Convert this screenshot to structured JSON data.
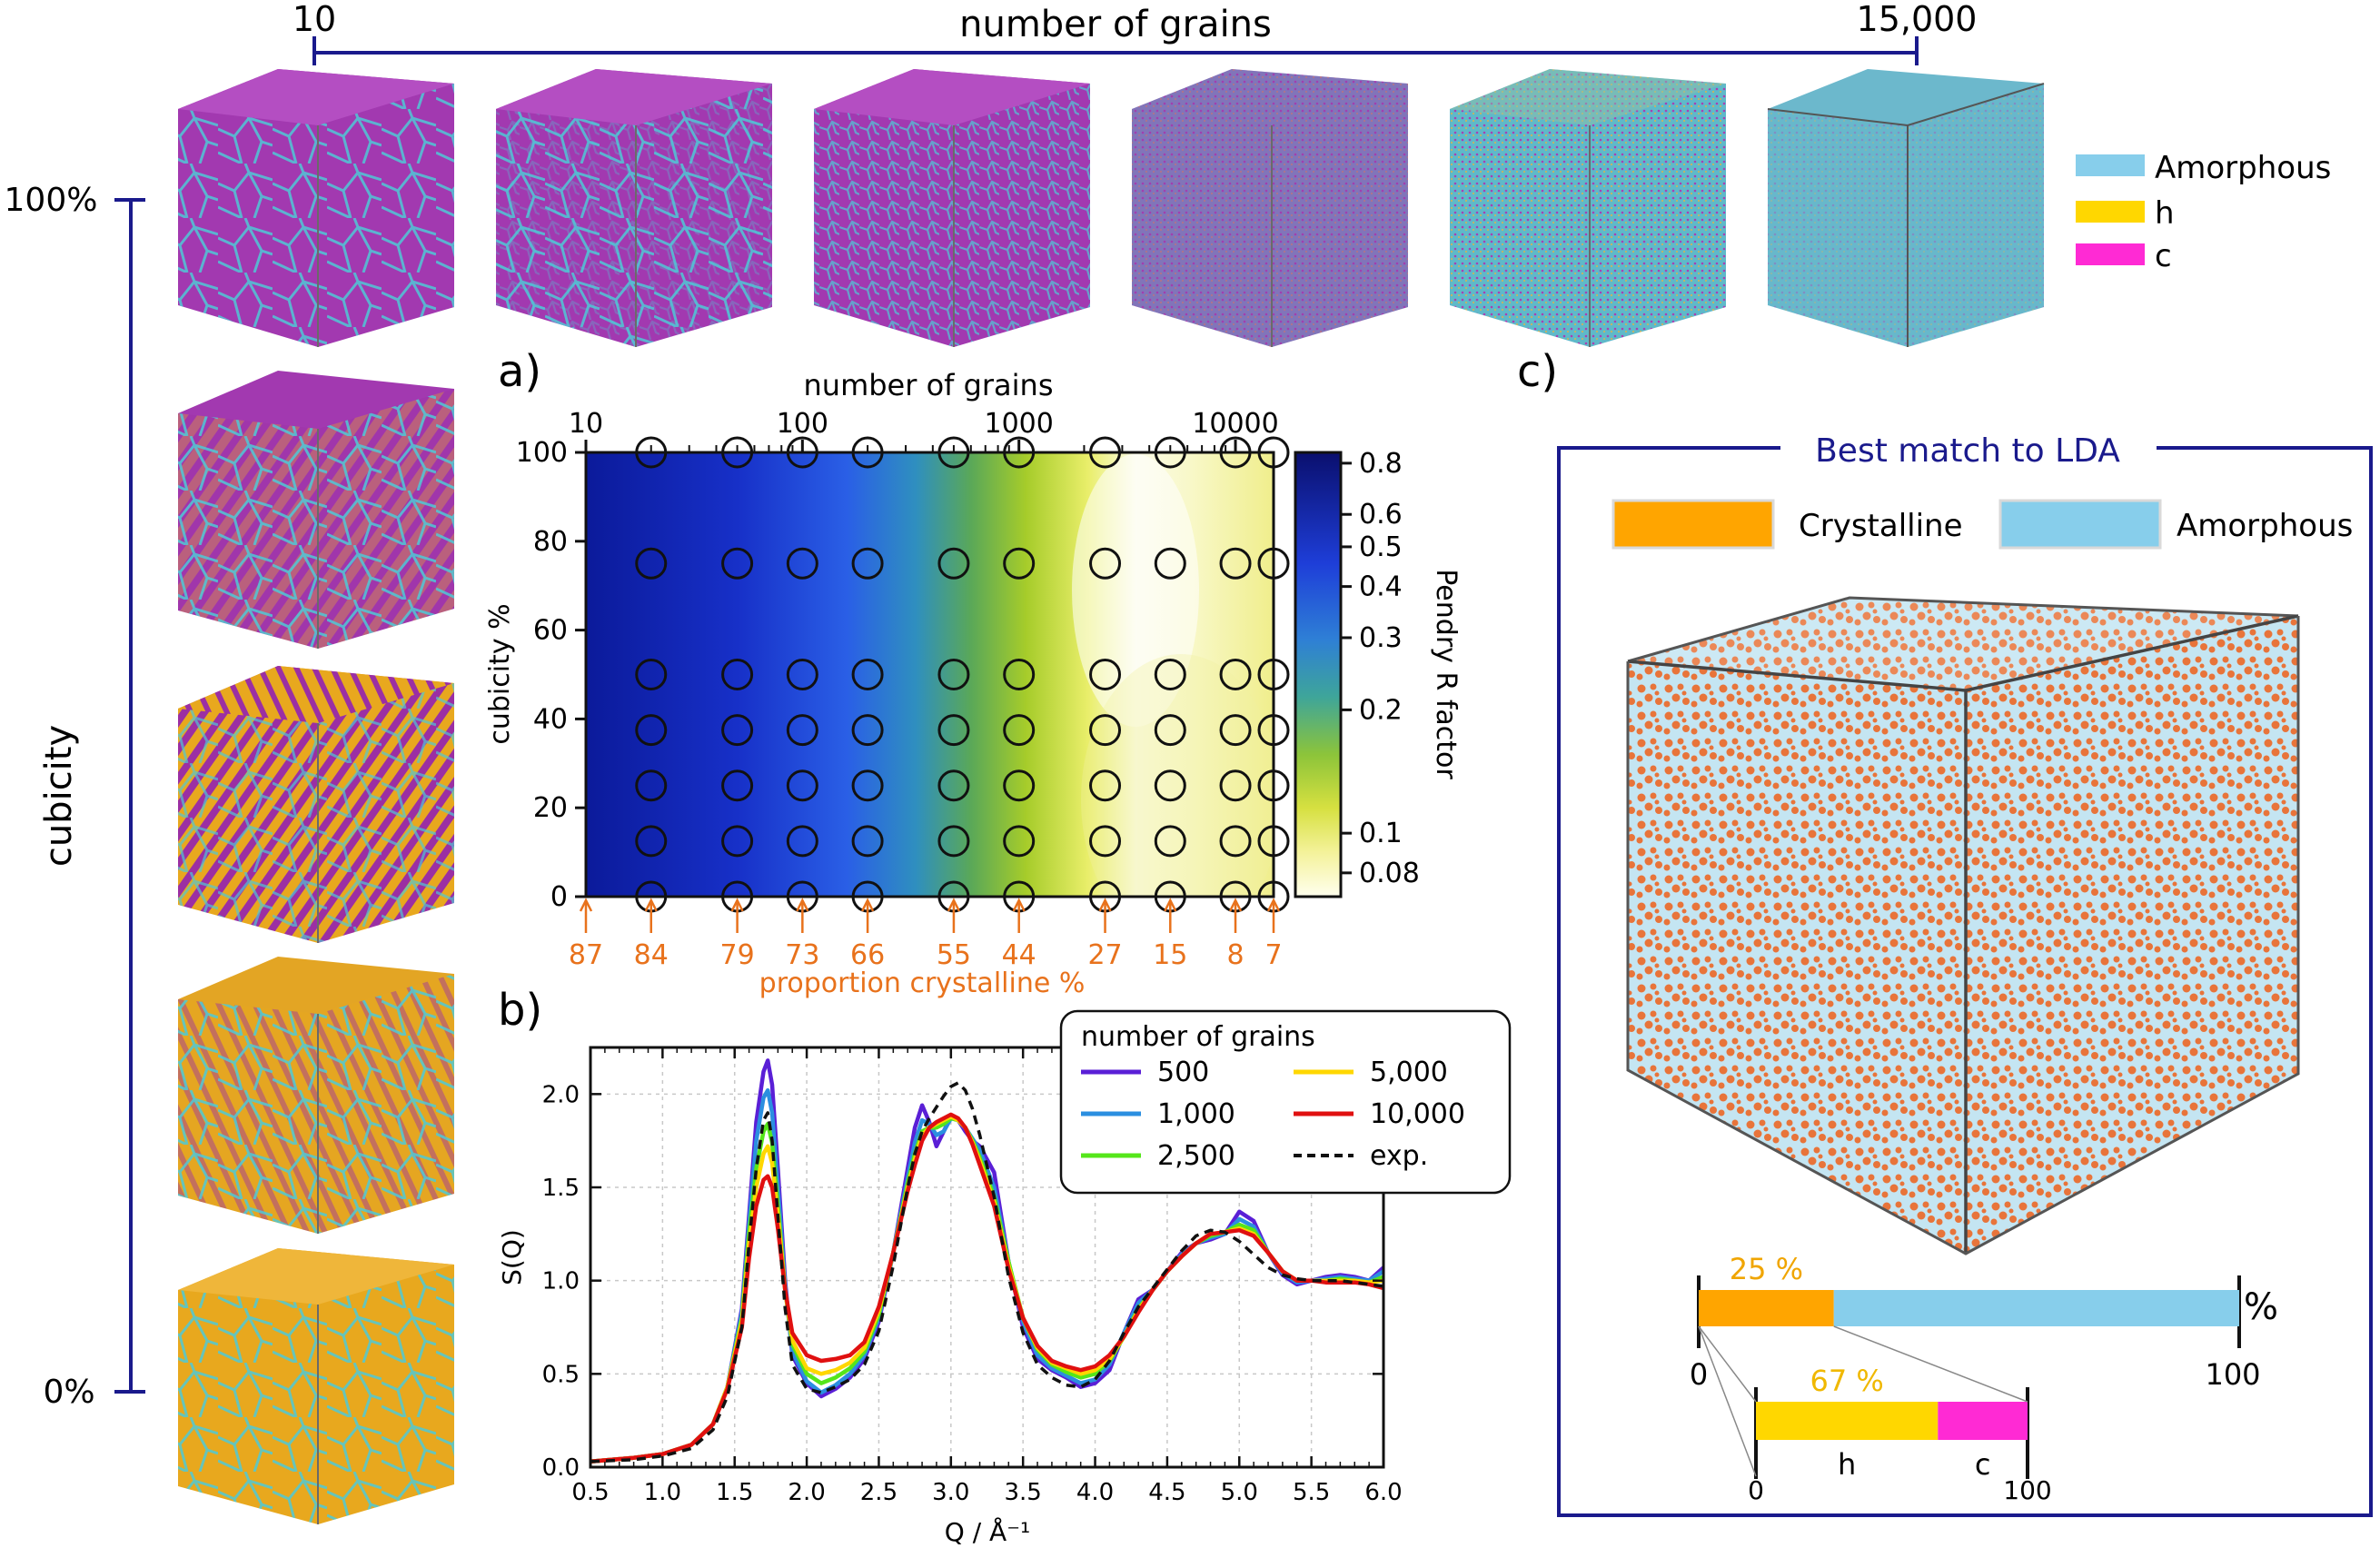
{
  "top_axis": {
    "title": "number of grains",
    "left_label": "10",
    "right_label": "15,000"
  },
  "side_axis": {
    "title": "cubicity",
    "top_label": "100%",
    "bottom_label": "0%"
  },
  "legend_top": {
    "items": [
      {
        "label": "Amorphous",
        "color": "#87ceeb"
      },
      {
        "label": "h",
        "color": "#ffd700"
      },
      {
        "label": "c",
        "color": "#ff2ad4"
      }
    ]
  },
  "colors": {
    "amorphous": "#87ceeb",
    "hexagonal": "#ffd700",
    "cubic": "#ff2ad4",
    "crystalline": "#ffa500",
    "accent": "#1a1a8c",
    "orange_text": "#e8721c"
  },
  "panel_a": {
    "label": "a)"
  },
  "panel_b": {
    "label": "b)"
  },
  "panel_c": {
    "label": "c)"
  },
  "chart_data": [
    {
      "type": "heatmap",
      "id": "panel_a",
      "top_xlabel": "number of grains",
      "top_xscale": "log",
      "top_xticks": [
        {
          "v": 10,
          "t": "10"
        },
        {
          "v": 100,
          "t": "100"
        },
        {
          "v": 1000,
          "t": "1000"
        },
        {
          "v": 10000,
          "t": "10000"
        }
      ],
      "xlim": [
        10,
        15000
      ],
      "ylabel": "cubicity %",
      "ylim": [
        0,
        100
      ],
      "yticks": [
        0,
        20,
        40,
        60,
        80,
        100
      ],
      "bottom_xlabel": "proportion crystalline %",
      "crystalline_markers": [
        {
          "grains": 10,
          "pct": "87"
        },
        {
          "grains": 20,
          "pct": "84"
        },
        {
          "grains": 50,
          "pct": "79"
        },
        {
          "grains": 100,
          "pct": "73"
        },
        {
          "grains": 200,
          "pct": "66"
        },
        {
          "grains": 500,
          "pct": "55"
        },
        {
          "grains": 1000,
          "pct": "44"
        },
        {
          "grains": 2500,
          "pct": "27"
        },
        {
          "grains": 5000,
          "pct": "15"
        },
        {
          "grains": 10000,
          "pct": "8"
        },
        {
          "grains": 15000,
          "pct": "7"
        }
      ],
      "sample_grains": [
        20,
        50,
        100,
        200,
        500,
        1000,
        2500,
        5000,
        10000,
        15000
      ],
      "sample_cubicity": [
        100,
        75,
        50,
        37.5,
        25,
        12.5,
        0
      ],
      "colorbar": {
        "label": "Pendry R factor",
        "scale": "log",
        "range": [
          0.07,
          0.85
        ],
        "ticks": [
          {
            "v": 0.8,
            "t": "0.8"
          },
          {
            "v": 0.6,
            "t": "0.6"
          },
          {
            "v": 0.5,
            "t": "0.5"
          },
          {
            "v": 0.4,
            "t": "0.4"
          },
          {
            "v": 0.3,
            "t": "0.3"
          },
          {
            "v": 0.2,
            "t": "0.2"
          },
          {
            "v": 0.1,
            "t": "0.1"
          },
          {
            "v": 0.08,
            "t": "0.08"
          }
        ]
      }
    },
    {
      "type": "line",
      "id": "panel_b",
      "xlabel": "Q / Å⁻¹",
      "ylabel": "S(Q)",
      "xlim": [
        0.5,
        6.0
      ],
      "ylim": [
        0,
        2.25
      ],
      "xticks": [
        0.5,
        1.0,
        1.5,
        2.0,
        2.5,
        3.0,
        3.5,
        4.0,
        4.5,
        5.0,
        5.5,
        6.0
      ],
      "yticks": [
        0.0,
        0.5,
        1.0,
        1.5,
        2.0
      ],
      "legend_title": "number of grains",
      "x": [
        0.5,
        0.8,
        1.0,
        1.2,
        1.35,
        1.45,
        1.55,
        1.6,
        1.65,
        1.7,
        1.73,
        1.76,
        1.8,
        1.85,
        1.9,
        2.0,
        2.1,
        2.2,
        2.3,
        2.4,
        2.5,
        2.6,
        2.7,
        2.75,
        2.8,
        2.85,
        2.9,
        2.95,
        3.0,
        3.05,
        3.1,
        3.15,
        3.2,
        3.3,
        3.4,
        3.5,
        3.6,
        3.7,
        3.8,
        3.9,
        4.0,
        4.1,
        4.2,
        4.3,
        4.4,
        4.5,
        4.6,
        4.7,
        4.8,
        4.9,
        5.0,
        5.1,
        5.2,
        5.3,
        5.4,
        5.5,
        5.6,
        5.7,
        5.8,
        5.9,
        6.0
      ],
      "series": [
        {
          "name": "500",
          "color": "#5a1fd6",
          "dash": "",
          "values": [
            0.03,
            0.05,
            0.07,
            0.12,
            0.23,
            0.43,
            0.85,
            1.35,
            1.85,
            2.12,
            2.18,
            2.05,
            1.6,
            1.0,
            0.6,
            0.45,
            0.38,
            0.42,
            0.48,
            0.58,
            0.78,
            1.15,
            1.6,
            1.82,
            1.94,
            1.85,
            1.72,
            1.8,
            1.88,
            1.86,
            1.8,
            1.75,
            1.72,
            1.58,
            1.1,
            0.75,
            0.58,
            0.52,
            0.48,
            0.43,
            0.45,
            0.52,
            0.72,
            0.9,
            0.95,
            1.05,
            1.15,
            1.2,
            1.22,
            1.25,
            1.37,
            1.32,
            1.15,
            1.03,
            0.98,
            1.0,
            1.02,
            1.03,
            1.02,
            1.0,
            1.07
          ]
        },
        {
          "name": "1,000",
          "color": "#2b8fe0",
          "dash": "",
          "values": [
            0.03,
            0.05,
            0.07,
            0.12,
            0.23,
            0.43,
            0.83,
            1.3,
            1.75,
            1.98,
            2.02,
            1.9,
            1.5,
            0.97,
            0.62,
            0.46,
            0.4,
            0.44,
            0.5,
            0.6,
            0.8,
            1.15,
            1.55,
            1.74,
            1.86,
            1.84,
            1.78,
            1.8,
            1.87,
            1.86,
            1.82,
            1.76,
            1.7,
            1.5,
            1.1,
            0.78,
            0.6,
            0.53,
            0.49,
            0.45,
            0.47,
            0.55,
            0.72,
            0.88,
            0.95,
            1.05,
            1.14,
            1.2,
            1.23,
            1.25,
            1.33,
            1.29,
            1.15,
            1.04,
            0.99,
            1.0,
            1.01,
            1.02,
            1.01,
            1.0,
            1.05
          ]
        },
        {
          "name": "2,500",
          "color": "#55e61a",
          "dash": "",
          "values": [
            0.03,
            0.05,
            0.07,
            0.12,
            0.23,
            0.43,
            0.8,
            1.25,
            1.6,
            1.8,
            1.84,
            1.74,
            1.4,
            0.95,
            0.66,
            0.5,
            0.45,
            0.48,
            0.53,
            0.62,
            0.82,
            1.15,
            1.52,
            1.68,
            1.8,
            1.82,
            1.82,
            1.84,
            1.87,
            1.86,
            1.82,
            1.75,
            1.66,
            1.45,
            1.1,
            0.8,
            0.63,
            0.55,
            0.51,
            0.48,
            0.5,
            0.57,
            0.7,
            0.85,
            0.95,
            1.05,
            1.13,
            1.2,
            1.24,
            1.26,
            1.3,
            1.27,
            1.15,
            1.05,
            1.0,
            1.0,
            1.0,
            1.01,
            1.0,
            0.99,
            1.02
          ]
        },
        {
          "name": "5,000",
          "color": "#ffd700",
          "dash": "",
          "values": [
            0.03,
            0.05,
            0.07,
            0.12,
            0.23,
            0.43,
            0.78,
            1.2,
            1.5,
            1.68,
            1.72,
            1.63,
            1.35,
            0.95,
            0.68,
            0.53,
            0.5,
            0.52,
            0.56,
            0.64,
            0.84,
            1.15,
            1.5,
            1.65,
            1.78,
            1.82,
            1.84,
            1.86,
            1.88,
            1.86,
            1.82,
            1.74,
            1.64,
            1.42,
            1.08,
            0.8,
            0.64,
            0.56,
            0.53,
            0.5,
            0.52,
            0.58,
            0.7,
            0.84,
            0.95,
            1.05,
            1.13,
            1.2,
            1.25,
            1.26,
            1.28,
            1.25,
            1.15,
            1.05,
            1.0,
            1.0,
            1.0,
            1.0,
            1.0,
            0.99,
            1.0
          ]
        },
        {
          "name": "10,000",
          "color": "#e01010",
          "dash": "",
          "values": [
            0.03,
            0.05,
            0.07,
            0.12,
            0.23,
            0.42,
            0.75,
            1.12,
            1.4,
            1.54,
            1.56,
            1.5,
            1.28,
            0.95,
            0.72,
            0.6,
            0.57,
            0.58,
            0.6,
            0.67,
            0.86,
            1.15,
            1.48,
            1.62,
            1.75,
            1.82,
            1.85,
            1.87,
            1.89,
            1.87,
            1.82,
            1.73,
            1.62,
            1.4,
            1.06,
            0.8,
            0.65,
            0.57,
            0.54,
            0.52,
            0.54,
            0.6,
            0.7,
            0.83,
            0.95,
            1.05,
            1.13,
            1.2,
            1.25,
            1.26,
            1.27,
            1.24,
            1.15,
            1.05,
            1.0,
            1.0,
            0.99,
            0.99,
            0.99,
            0.98,
            0.96
          ]
        },
        {
          "name": "exp.",
          "color": "#111111",
          "dash": "10 7",
          "values": [
            0.03,
            0.04,
            0.06,
            0.1,
            0.2,
            0.38,
            0.75,
            1.2,
            1.6,
            1.86,
            1.9,
            1.75,
            1.35,
            0.85,
            0.55,
            0.42,
            0.4,
            0.43,
            0.47,
            0.55,
            0.73,
            1.08,
            1.5,
            1.68,
            1.8,
            1.87,
            1.93,
            1.99,
            2.04,
            2.06,
            2.02,
            1.92,
            1.78,
            1.45,
            1.02,
            0.72,
            0.55,
            0.48,
            0.44,
            0.43,
            0.47,
            0.57,
            0.72,
            0.86,
            0.96,
            1.06,
            1.16,
            1.24,
            1.27,
            1.26,
            1.21,
            1.14,
            1.07,
            1.03,
            1.01,
            1.0,
            1.0,
            1.0,
            0.99,
            0.98,
            0.97
          ]
        }
      ]
    },
    {
      "type": "bar",
      "id": "panel_c",
      "title": "Best match to LDA",
      "legend": [
        {
          "label": "Crystalline",
          "color": "#ffa500"
        },
        {
          "label": "Amorphous",
          "color": "#87ceeb"
        }
      ],
      "main_bar": {
        "crystalline": 25,
        "label": "25 %",
        "start_label": "0",
        "end_label": "100",
        "unit": "%"
      },
      "sub_bar": {
        "h": 67,
        "label": "67 %",
        "h_label": "h",
        "c_label": "c",
        "start_label": "0",
        "end_label": "100"
      }
    }
  ]
}
